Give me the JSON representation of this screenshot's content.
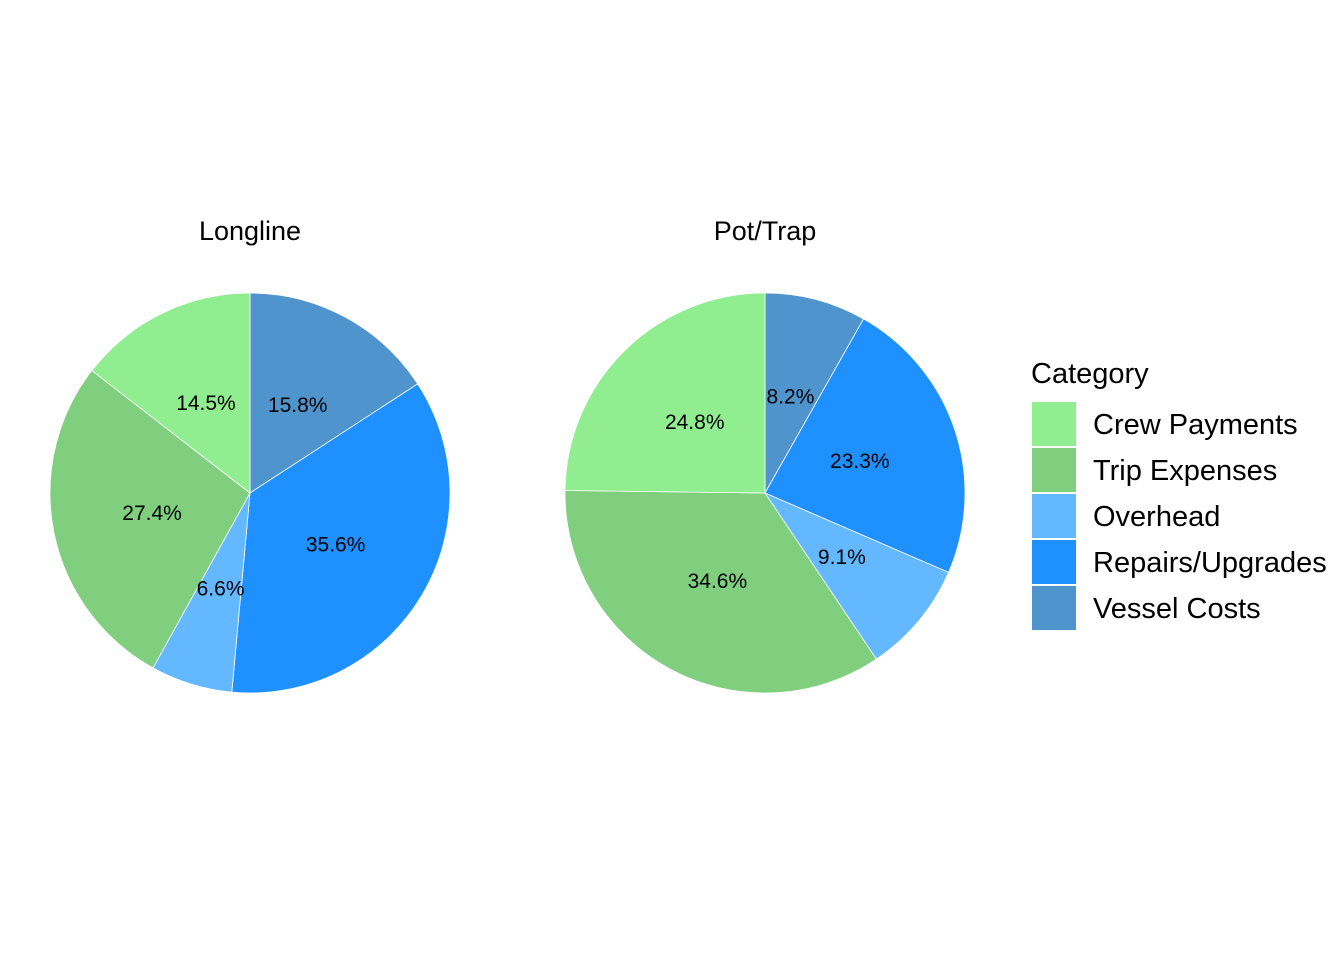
{
  "chart_data": {
    "type": "pie",
    "categories": [
      "Crew Payments",
      "Trip Expenses",
      "Overhead",
      "Repairs/Upgrades",
      "Vessel Costs"
    ],
    "colors": {
      "Crew Payments": "#90EE90",
      "Trip Expenses": "#7FCF7F",
      "Overhead": "#63B8FF",
      "Repairs/Upgrades": "#1E90FF",
      "Vessel Costs": "#4F94CD"
    },
    "legend": {
      "title": "Category",
      "position": "right"
    },
    "panels": [
      {
        "title": "Longline",
        "slices": [
          {
            "category": "Vessel Costs",
            "value": 15.8,
            "label": "15.8%"
          },
          {
            "category": "Repairs/Upgrades",
            "value": 35.6,
            "label": "35.6%"
          },
          {
            "category": "Overhead",
            "value": 6.6,
            "label": "6.6%"
          },
          {
            "category": "Trip Expenses",
            "value": 27.4,
            "label": "27.4%"
          },
          {
            "category": "Crew Payments",
            "value": 14.5,
            "label": "14.5%"
          }
        ]
      },
      {
        "title": "Pot/Trap",
        "slices": [
          {
            "category": "Vessel Costs",
            "value": 8.2,
            "label": "8.2%"
          },
          {
            "category": "Repairs/Upgrades",
            "value": 23.3,
            "label": "23.3%"
          },
          {
            "category": "Overhead",
            "value": 9.1,
            "label": "9.1%"
          },
          {
            "category": "Trip Expenses",
            "value": 34.6,
            "label": "34.6%"
          },
          {
            "category": "Crew Payments",
            "value": 24.8,
            "label": "24.8%"
          }
        ]
      }
    ]
  }
}
